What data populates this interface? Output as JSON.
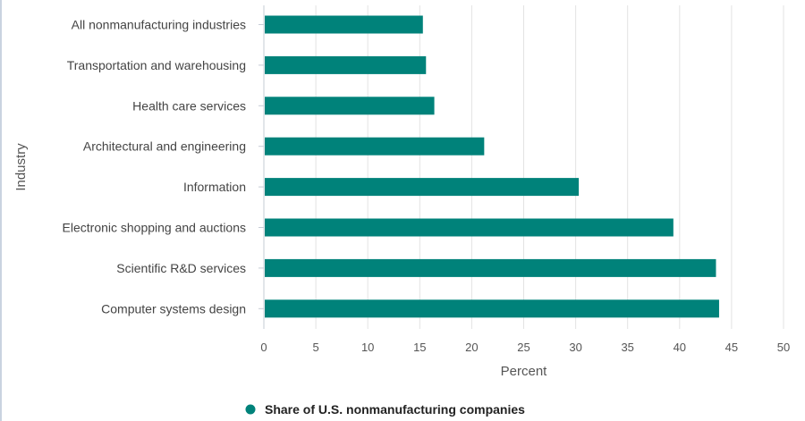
{
  "chart_data": {
    "type": "bar",
    "orientation": "horizontal",
    "categories": [
      "All nonmanufacturing industries",
      "Transportation and warehousing",
      "Health care services",
      "Architectural and engineering",
      "Information",
      "Electronic shopping and auctions",
      "Scientific R&D services",
      "Computer systems design"
    ],
    "series": [
      {
        "name": "Share of U.S. nonmanufacturing companies",
        "values": [
          15.3,
          15.6,
          16.4,
          21.2,
          30.3,
          39.4,
          43.5,
          43.8
        ]
      }
    ],
    "xlabel": "Percent",
    "ylabel": "Industry",
    "xlim": [
      0,
      50
    ],
    "xticks": [
      0,
      5,
      10,
      15,
      20,
      25,
      30,
      35,
      40,
      45,
      50
    ],
    "grid": "vertical",
    "legend_position": "bottom-center",
    "colors": {
      "bar": "#00827a",
      "grid": "#e3e3e3",
      "axis": "#c6ccd6"
    }
  }
}
